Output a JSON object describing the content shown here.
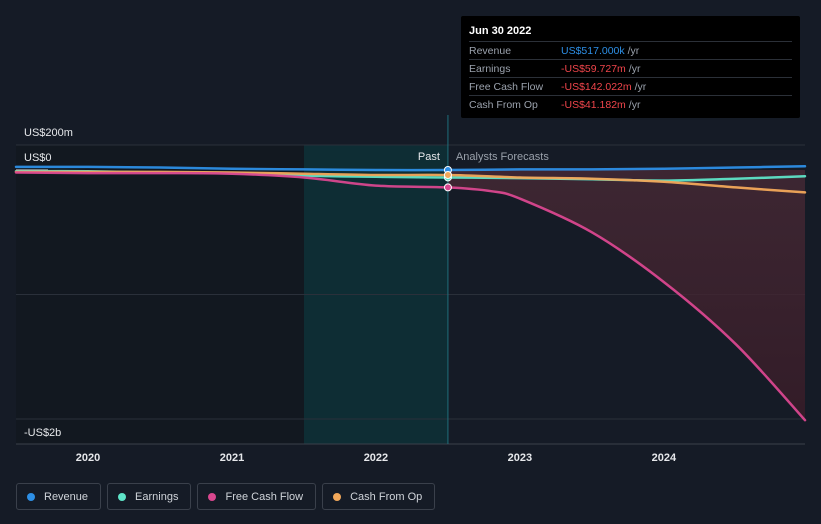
{
  "chart_data": {
    "type": "line",
    "title": "",
    "y_unit_labels": {
      "top": "US$200m",
      "zero": "US$0",
      "bottom": "-US$2b"
    },
    "ylim": [
      -2100,
      200
    ],
    "xlim": [
      2019.5,
      2024.98
    ],
    "x_ticks": [
      {
        "value": 2020,
        "label": "2020"
      },
      {
        "value": 2021,
        "label": "2021"
      },
      {
        "value": 2022,
        "label": "2022"
      },
      {
        "value": 2023,
        "label": "2023"
      },
      {
        "value": 2024,
        "label": "2024"
      }
    ],
    "divider_x": 2022.5,
    "highlight_range": [
      2021.5,
      2022.5
    ],
    "past_label": "Past",
    "forecast_label": "Analysts Forecasts",
    "series": [
      {
        "name": "Revenue",
        "color": "#2d8fe6",
        "points": [
          [
            2019.5,
            25
          ],
          [
            2020.0,
            25
          ],
          [
            2020.5,
            20
          ],
          [
            2021.0,
            10
          ],
          [
            2021.5,
            5
          ],
          [
            2022.0,
            0
          ],
          [
            2022.5,
            0
          ],
          [
            2023.0,
            5
          ],
          [
            2023.5,
            5
          ],
          [
            2024.0,
            10
          ],
          [
            2024.5,
            20
          ],
          [
            2024.98,
            30
          ]
        ]
      },
      {
        "name": "Earnings",
        "color": "#5ee4c8",
        "points": [
          [
            2019.5,
            -10
          ],
          [
            2020.0,
            -10
          ],
          [
            2020.5,
            -20
          ],
          [
            2021.0,
            -25
          ],
          [
            2021.5,
            -45
          ],
          [
            2022.0,
            -55
          ],
          [
            2022.5,
            -60
          ],
          [
            2023.0,
            -65
          ],
          [
            2023.5,
            -75
          ],
          [
            2024.0,
            -85
          ],
          [
            2024.5,
            -70
          ],
          [
            2024.98,
            -50
          ]
        ]
      },
      {
        "name": "Free Cash Flow",
        "color": "#d9478f",
        "points": [
          [
            2019.5,
            -20
          ],
          [
            2020.0,
            -25
          ],
          [
            2020.5,
            -25
          ],
          [
            2021.0,
            -30
          ],
          [
            2021.5,
            -60
          ],
          [
            2022.0,
            -125
          ],
          [
            2022.5,
            -140
          ],
          [
            2022.8,
            -170
          ],
          [
            2023.0,
            -230
          ],
          [
            2023.5,
            -500
          ],
          [
            2024.0,
            -900
          ],
          [
            2024.5,
            -1400
          ],
          [
            2024.98,
            -2010
          ]
        ]
      },
      {
        "name": "Cash From Op",
        "color": "#f2a85a",
        "points": [
          [
            2019.5,
            -15
          ],
          [
            2020.0,
            -15
          ],
          [
            2020.5,
            -15
          ],
          [
            2021.0,
            -20
          ],
          [
            2021.5,
            -30
          ],
          [
            2022.0,
            -40
          ],
          [
            2022.5,
            -40
          ],
          [
            2023.0,
            -60
          ],
          [
            2023.5,
            -70
          ],
          [
            2024.0,
            -95
          ],
          [
            2024.5,
            -140
          ],
          [
            2024.98,
            -180
          ]
        ]
      }
    ]
  },
  "tooltip": {
    "date": "Jun 30 2022",
    "rows": [
      {
        "label": "Revenue",
        "value": "US$517.000k",
        "unit": "/yr",
        "color": "#2d8fe6"
      },
      {
        "label": "Earnings",
        "value": "-US$59.727m",
        "unit": "/yr",
        "color": "#f0454b"
      },
      {
        "label": "Free Cash Flow",
        "value": "-US$142.022m",
        "unit": "/yr",
        "color": "#f0454b"
      },
      {
        "label": "Cash From Op",
        "value": "-US$41.182m",
        "unit": "/yr",
        "color": "#f0454b"
      }
    ]
  },
  "legend": [
    {
      "label": "Revenue",
      "color": "#2d8fe6"
    },
    {
      "label": "Earnings",
      "color": "#5ee4c8"
    },
    {
      "label": "Free Cash Flow",
      "color": "#d9478f"
    },
    {
      "label": "Cash From Op",
      "color": "#f2a85a"
    }
  ]
}
